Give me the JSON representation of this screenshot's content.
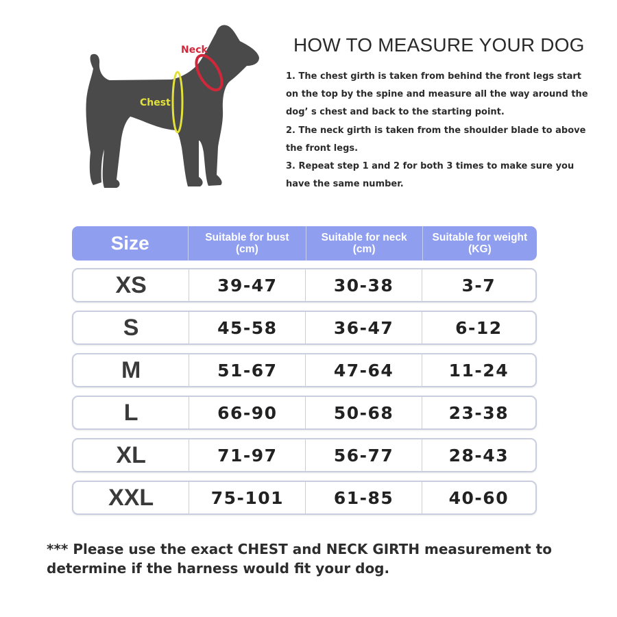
{
  "illustration": {
    "neck_label": "Neck",
    "chest_label": "Chest",
    "colors": {
      "dog": "#4a4a4a",
      "neck": "#d0283a",
      "chest": "#e3e23a"
    }
  },
  "title": "HOW TO MEASURE YOUR DOG",
  "instructions": [
    "1. The chest girth is taken from behind the front legs start",
    "on the top by the spine and measure all the way around the",
    "dog’ s chest and back to the starting point.",
    "2. The neck girth is taken from the shoulder blade to above",
    "the front legs.",
    "3. Repeat step 1 and 2 for both 3 times to make sure you",
    "have the same number."
  ],
  "table": {
    "header_color": "#8f9eee",
    "headers": [
      {
        "line1": "Size",
        "line2": ""
      },
      {
        "line1": "Suitable for bust",
        "line2": "(cm)"
      },
      {
        "line1": "Suitable for neck",
        "line2": "(cm)"
      },
      {
        "line1": "Suitable for weight",
        "line2": "(KG)"
      }
    ],
    "rows": [
      {
        "size": "XS",
        "bust": "39-47",
        "neck": "30-38",
        "weight": "3-7"
      },
      {
        "size": "S",
        "bust": "45-58",
        "neck": "36-47",
        "weight": "6-12"
      },
      {
        "size": "M",
        "bust": "51-67",
        "neck": "47-64",
        "weight": "11-24"
      },
      {
        "size": "L",
        "bust": "66-90",
        "neck": "50-68",
        "weight": "23-38"
      },
      {
        "size": "XL",
        "bust": "71-97",
        "neck": "56-77",
        "weight": "28-43"
      },
      {
        "size": "XXL",
        "bust": "75-101",
        "neck": "61-85",
        "weight": "40-60"
      }
    ]
  },
  "footer": [
    "*** Please use the exact CHEST and NECK GIRTH measurement to",
    "determine if the harness would fit your dog."
  ]
}
